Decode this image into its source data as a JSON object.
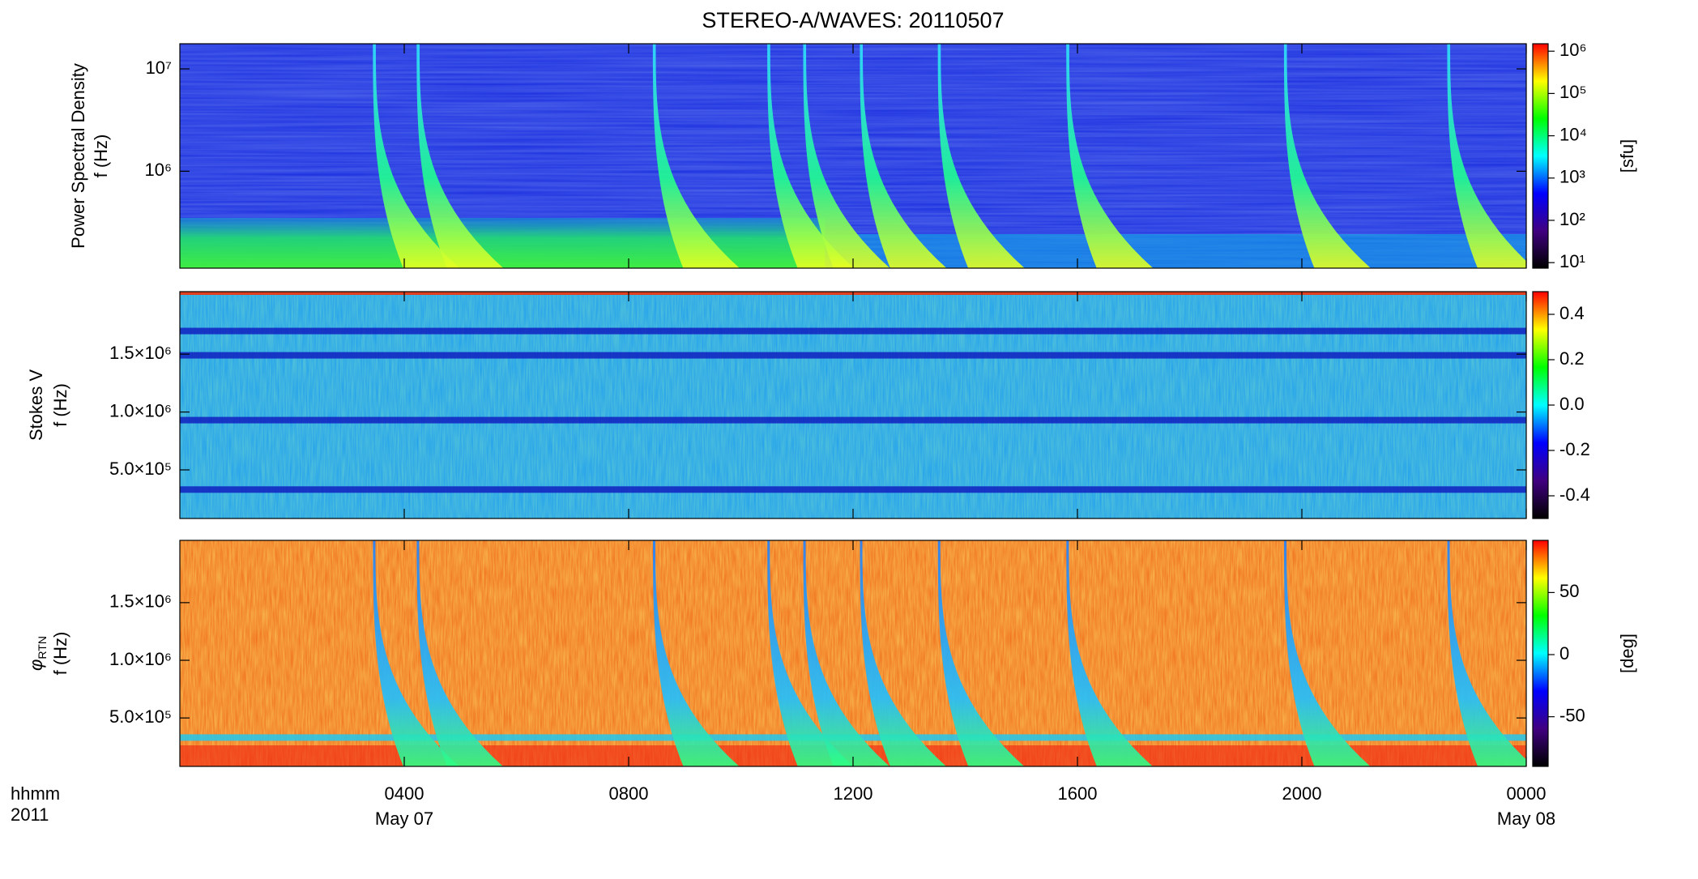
{
  "chart_data": [
    {
      "type": "spectrogram",
      "title": "STEREO-A/WAVES: 20110507",
      "ylabel": "Power Spectral Density",
      "ylabel2": "f (Hz)",
      "ylog": true,
      "ylim": [
        113000,
        17600000
      ],
      "yticks": [
        {
          "value": 1000000,
          "label": "10⁶"
        },
        {
          "value": 10000000,
          "label": "10⁷"
        }
      ],
      "xlim": [
        0,
        24
      ],
      "bursts": [
        3.45,
        4.23,
        8.44,
        10.48,
        11.12,
        12.13,
        13.52,
        15.81,
        19.69,
        22.6
      ],
      "colorbar": {
        "log": true,
        "lim": [
          7.4,
          1500000
        ],
        "label": "[sfu]",
        "ticks": [
          {
            "value": 10,
            "label": "10¹"
          },
          {
            "value": 100,
            "label": "10²"
          },
          {
            "value": 1000,
            "label": "10³"
          },
          {
            "value": 10000,
            "label": "10⁴"
          },
          {
            "value": 100000,
            "label": "10⁵"
          },
          {
            "value": 1000000,
            "label": "10⁶"
          }
        ]
      },
      "colormap": [
        "#000000",
        "#400080",
        "#0000ff",
        "#00ffff",
        "#00ff00",
        "#ffff00",
        "#ff0000"
      ]
    },
    {
      "type": "spectrogram",
      "ylabel": "Stokes V",
      "ylabel2": "f (Hz)",
      "ylog": false,
      "ylim": [
        80000,
        2040000
      ],
      "yticks": [
        {
          "value": 500000,
          "label": "5.0×10⁵"
        },
        {
          "value": 1000000,
          "label": "1.0×10⁶"
        },
        {
          "value": 1500000,
          "label": "1.5×10⁶"
        }
      ],
      "xlim": [
        0,
        24
      ],
      "bands": [
        1700000,
        1490000,
        930000,
        330000
      ],
      "colorbar": {
        "log": false,
        "lim": [
          -0.5,
          0.5
        ],
        "ticks": [
          {
            "value": -0.4,
            "label": "-0.4"
          },
          {
            "value": -0.2,
            "label": "-0.2"
          },
          {
            "value": 0,
            "label": "0.0"
          },
          {
            "value": 0.2,
            "label": "0.2"
          },
          {
            "value": 0.4,
            "label": "0.4"
          }
        ]
      },
      "colormap": [
        "#000000",
        "#400080",
        "#0000ff",
        "#00ffff",
        "#00ff00",
        "#ffff00",
        "#ff0000"
      ]
    },
    {
      "type": "spectrogram",
      "ylabel": "φ",
      "ylabel_sub": "RTN",
      "ylabel2": "f (Hz)",
      "ylog": false,
      "ylim": [
        80000,
        2040000
      ],
      "yticks": [
        {
          "value": 500000,
          "label": "5.0×10⁵"
        },
        {
          "value": 1000000,
          "label": "1.0×10⁶"
        },
        {
          "value": 1500000,
          "label": "1.5×10⁶"
        }
      ],
      "xlim": [
        0,
        24
      ],
      "xticks": [
        {
          "value": 4,
          "label": "0400"
        },
        {
          "value": 8,
          "label": "0800"
        },
        {
          "value": 12,
          "label": "1200"
        },
        {
          "value": 16,
          "label": "1600"
        },
        {
          "value": 20,
          "label": "2000"
        },
        {
          "value": 24,
          "label": "0000"
        }
      ],
      "x_date_labels": [
        {
          "value": 4,
          "label": "May 07"
        },
        {
          "value": 24,
          "label": "May 08"
        }
      ],
      "x_corner_labels": [
        "hhmm",
        "2011"
      ],
      "bursts": [
        3.45,
        4.23,
        8.44,
        10.48,
        11.12,
        12.13,
        13.52,
        15.81,
        19.69,
        22.6
      ],
      "bands": [
        330000
      ],
      "colorbar": {
        "log": false,
        "lim": [
          -90,
          92
        ],
        "label": "[deg]",
        "ticks": [
          {
            "value": -50,
            "label": "-50"
          },
          {
            "value": 0,
            "label": "0"
          },
          {
            "value": 50,
            "label": "50"
          }
        ]
      },
      "colormap": [
        "#000000",
        "#400080",
        "#0000ff",
        "#00ffff",
        "#00ff00",
        "#ffff00",
        "#ff0000"
      ]
    }
  ]
}
